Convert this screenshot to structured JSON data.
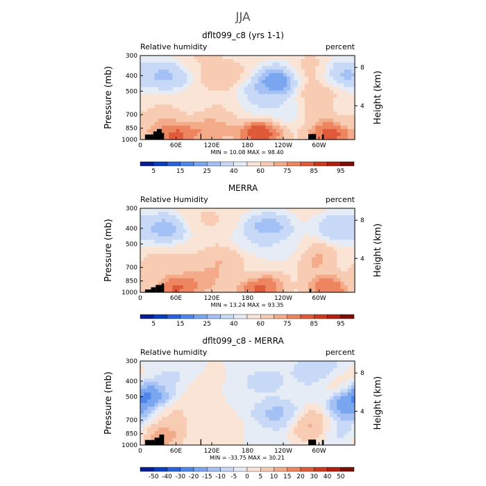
{
  "figure": {
    "title": "JJA"
  },
  "colors": {
    "rh_levels": [
      "#081d8e",
      "#0a3fbf",
      "#2a62dd",
      "#4f86ea",
      "#7aa6f0",
      "#a3c1f5",
      "#c7d9f7",
      "#e6ecf6",
      "#f9e4d6",
      "#f7ccb3",
      "#f3ab8a",
      "#ec8560",
      "#df5a38",
      "#cc3a1e",
      "#b02010",
      "#7d0e06"
    ],
    "diff_levels": [
      "#081d8e",
      "#0a3fbf",
      "#2a62dd",
      "#4f86ea",
      "#7aa6f0",
      "#a3c1f5",
      "#c7d9f7",
      "#e6ecf6",
      "#f9e4d6",
      "#f7ccb3",
      "#f3ab8a",
      "#ec8560",
      "#df5a38",
      "#cc3a1e",
      "#b02010",
      "#7d0e06"
    ],
    "terrain": "#000000"
  },
  "chart_data": [
    {
      "type": "heatmap",
      "title": "dflt099_c8 (yrs 1-1)",
      "left_label": "Relative humidity",
      "right_label": "percent",
      "ylabel": "Pressure (mb)",
      "y2label": "Height (km)",
      "x_ticks": [
        "0",
        "60E",
        "120E",
        "180",
        "120W",
        "60W"
      ],
      "x_tick_lon": [
        0,
        60,
        120,
        180,
        240,
        300
      ],
      "xlim": [
        0,
        360
      ],
      "y_ticks": [
        "300",
        "400",
        "500",
        "700",
        "850",
        "1000"
      ],
      "y_tick_p": [
        300,
        400,
        500,
        700,
        850,
        1000
      ],
      "y2_ticks": [
        "8",
        "4"
      ],
      "y2_tick_p": [
        356,
        616
      ],
      "stats": "MIN =   10.08   MAX =   98.40",
      "min": 10.08,
      "max": 98.4,
      "colorbar_labels": [
        "5",
        "15",
        "25",
        "40",
        "60",
        "75",
        "85",
        "95"
      ],
      "colorbar_label_index": [
        1,
        3,
        5,
        7,
        9,
        11,
        13,
        15
      ],
      "features": [
        {
          "lon": 42,
          "p": 400,
          "v": 22
        },
        {
          "lon": 105,
          "p": 300,
          "v": 62
        },
        {
          "lon": 140,
          "p": 400,
          "v": 68
        },
        {
          "lon": 235,
          "p": 430,
          "v": 10
        },
        {
          "lon": 210,
          "p": 500,
          "v": 22
        },
        {
          "lon": 195,
          "p": 600,
          "v": 38
        },
        {
          "lon": 255,
          "p": 650,
          "v": 35
        },
        {
          "lon": 290,
          "p": 380,
          "v": 70
        },
        {
          "lon": 300,
          "p": 500,
          "v": 75
        },
        {
          "lon": 332,
          "p": 400,
          "v": 18
        },
        {
          "lon": 10,
          "p": 700,
          "v": 60
        },
        {
          "lon": 30,
          "p": 750,
          "v": 78
        },
        {
          "lon": 75,
          "p": 650,
          "v": 58
        },
        {
          "lon": 145,
          "p": 650,
          "v": 62
        },
        {
          "lon": 290,
          "p": 650,
          "v": 78
        },
        {
          "lon": 350,
          "p": 600,
          "v": 50
        },
        {
          "lon": 60,
          "p": 920,
          "v": 88
        },
        {
          "lon": 200,
          "p": 900,
          "v": 90
        },
        {
          "lon": 320,
          "p": 920,
          "v": 88
        },
        {
          "lon": 120,
          "p": 850,
          "v": 80
        }
      ],
      "terrain": [
        {
          "lon0": 8,
          "lon1": 22,
          "p": 930
        },
        {
          "lon0": 22,
          "lon1": 28,
          "p": 890
        },
        {
          "lon0": 28,
          "lon1": 36,
          "p": 860
        },
        {
          "lon0": 36,
          "lon1": 40,
          "p": 910
        },
        {
          "lon0": 101,
          "lon1": 102.5,
          "p": 920
        },
        {
          "lon0": 282,
          "lon1": 295,
          "p": 925
        },
        {
          "lon0": 305,
          "lon1": 308,
          "p": 930
        }
      ]
    },
    {
      "type": "heatmap",
      "title": "MERRA",
      "left_label": "Relative Humidity",
      "right_label": "percent",
      "ylabel": "Pressure (mb)",
      "y2label": "Height (km)",
      "x_ticks": [
        "0",
        "60E",
        "120E",
        "180",
        "120W",
        "60W"
      ],
      "x_tick_lon": [
        0,
        60,
        120,
        180,
        240,
        300
      ],
      "xlim": [
        0,
        360
      ],
      "y_ticks": [
        "300",
        "400",
        "500",
        "700",
        "850",
        "1000"
      ],
      "y_tick_p": [
        300,
        400,
        500,
        700,
        850,
        1000
      ],
      "y2_ticks": [
        "8",
        "4"
      ],
      "y2_tick_p": [
        356,
        616
      ],
      "stats": "MIN =   13.24   MAX =   93.35",
      "min": 13.24,
      "max": 93.35,
      "colorbar_labels": [
        "5",
        "15",
        "25",
        "40",
        "60",
        "75",
        "85",
        "95"
      ],
      "colorbar_label_index": [
        1,
        3,
        5,
        7,
        9,
        11,
        13,
        15
      ],
      "features": [
        {
          "lon": 42,
          "p": 400,
          "v": 20
        },
        {
          "lon": 110,
          "p": 350,
          "v": 62
        },
        {
          "lon": 145,
          "p": 650,
          "v": 76
        },
        {
          "lon": 215,
          "p": 400,
          "v": 18
        },
        {
          "lon": 195,
          "p": 500,
          "v": 38
        },
        {
          "lon": 255,
          "p": 550,
          "v": 40
        },
        {
          "lon": 290,
          "p": 600,
          "v": 80
        },
        {
          "lon": 335,
          "p": 400,
          "v": 25
        },
        {
          "lon": 10,
          "p": 800,
          "v": 60
        },
        {
          "lon": 25,
          "p": 700,
          "v": 72
        },
        {
          "lon": 75,
          "p": 650,
          "v": 62
        },
        {
          "lon": 180,
          "p": 700,
          "v": 55
        },
        {
          "lon": 350,
          "p": 650,
          "v": 55
        },
        {
          "lon": 60,
          "p": 920,
          "v": 88
        },
        {
          "lon": 200,
          "p": 920,
          "v": 88
        },
        {
          "lon": 320,
          "p": 920,
          "v": 86
        },
        {
          "lon": 100,
          "p": 820,
          "v": 78
        }
      ],
      "terrain": [
        {
          "lon0": 8,
          "lon1": 18,
          "p": 960
        },
        {
          "lon0": 18,
          "lon1": 26,
          "p": 930
        },
        {
          "lon0": 26,
          "lon1": 36,
          "p": 900
        },
        {
          "lon0": 36,
          "lon1": 40,
          "p": 880
        },
        {
          "lon0": 284,
          "lon1": 287,
          "p": 950
        }
      ]
    },
    {
      "type": "heatmap",
      "title": "dflt099_c8 - MERRA",
      "left_label": "Relative humidity",
      "right_label": "percent",
      "ylabel": "Pressure (mb)",
      "y2label": "Height (km)",
      "x_ticks": [
        "0",
        "60E",
        "120E",
        "180",
        "120W",
        "60W"
      ],
      "x_tick_lon": [
        0,
        60,
        120,
        180,
        240,
        300
      ],
      "xlim": [
        0,
        360
      ],
      "y_ticks": [
        "300",
        "400",
        "500",
        "700",
        "850",
        "1000"
      ],
      "y_tick_p": [
        300,
        400,
        500,
        700,
        850,
        1000
      ],
      "y2_ticks": [
        "8",
        "4"
      ],
      "y2_tick_p": [
        356,
        616
      ],
      "stats": "MIN =  -33.75   MAX =   30.21",
      "min": -33.75,
      "max": 30.21,
      "colorbar_labels": [
        "-50",
        "-40",
        "-30",
        "-20",
        "-15",
        "-10",
        "-5",
        "0",
        "5",
        "10",
        "15",
        "20",
        "30",
        "40",
        "50"
      ],
      "colorbar_label_index": [
        1,
        2,
        3,
        4,
        5,
        6,
        7,
        8,
        9,
        10,
        11,
        12,
        13,
        14,
        15
      ],
      "features": [
        {
          "lon": 10,
          "p": 500,
          "v": -28
        },
        {
          "lon": 45,
          "p": 650,
          "v": 8
        },
        {
          "lon": 60,
          "p": 400,
          "v": -8
        },
        {
          "lon": 100,
          "p": 450,
          "v": 6
        },
        {
          "lon": 130,
          "p": 550,
          "v": 5
        },
        {
          "lon": 160,
          "p": 500,
          "v": -6
        },
        {
          "lon": 230,
          "p": 650,
          "v": -14
        },
        {
          "lon": 210,
          "p": 400,
          "v": -8
        },
        {
          "lon": 290,
          "p": 750,
          "v": 14
        },
        {
          "lon": 300,
          "p": 350,
          "v": -14
        },
        {
          "lon": 340,
          "p": 800,
          "v": -10
        },
        {
          "lon": 355,
          "p": 600,
          "v": -22
        },
        {
          "lon": 30,
          "p": 860,
          "v": 16
        },
        {
          "lon": 150,
          "p": 870,
          "v": 4
        },
        {
          "lon": 200,
          "p": 880,
          "v": -4
        },
        {
          "lon": 330,
          "p": 400,
          "v": 5
        }
      ],
      "terrain": [
        {
          "lon0": 8,
          "lon1": 24,
          "p": 930
        },
        {
          "lon0": 24,
          "lon1": 32,
          "p": 900
        },
        {
          "lon0": 32,
          "lon1": 40,
          "p": 860
        },
        {
          "lon0": 101,
          "lon1": 102.5,
          "p": 920
        },
        {
          "lon0": 282,
          "lon1": 295,
          "p": 925
        },
        {
          "lon0": 305,
          "lon1": 308,
          "p": 930
        }
      ]
    }
  ]
}
